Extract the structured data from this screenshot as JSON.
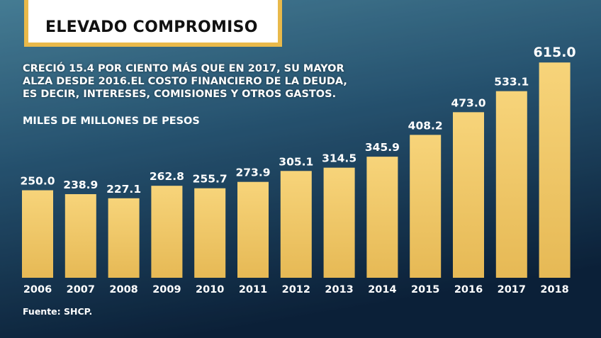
{
  "chart_data": {
    "type": "bar",
    "title": "ELEVADO COMPROMISO",
    "subtitle": "CRECIÓ 15.4 POR CIENTO MÁS QUE EN 2017, SU MAYOR ALZA DESDE 2016.EL COSTO FINANCIERO DE LA DEUDA, ES DECIR, INTERESES, COMISIONES Y OTROS GASTOS.",
    "unit_label": "MILES DE MILLONES DE PESOS",
    "source": "Fuente: SHCP.",
    "categories": [
      "2006",
      "2007",
      "2008",
      "2009",
      "2010",
      "2011",
      "2012",
      "2013",
      "2014",
      "2015",
      "2016",
      "2017",
      "2018"
    ],
    "values": [
      250.0,
      238.9,
      227.1,
      262.8,
      255.7,
      273.9,
      305.1,
      314.5,
      345.9,
      408.2,
      473.0,
      533.1,
      615.0
    ],
    "value_labels": [
      "250.0",
      "238.9",
      "227.1",
      "262.8",
      "255.7",
      "273.9",
      "305.1",
      "314.5",
      "345.9",
      "408.2",
      "473.0",
      "533.1",
      "615.0"
    ],
    "color": "#f2cd72"
  }
}
